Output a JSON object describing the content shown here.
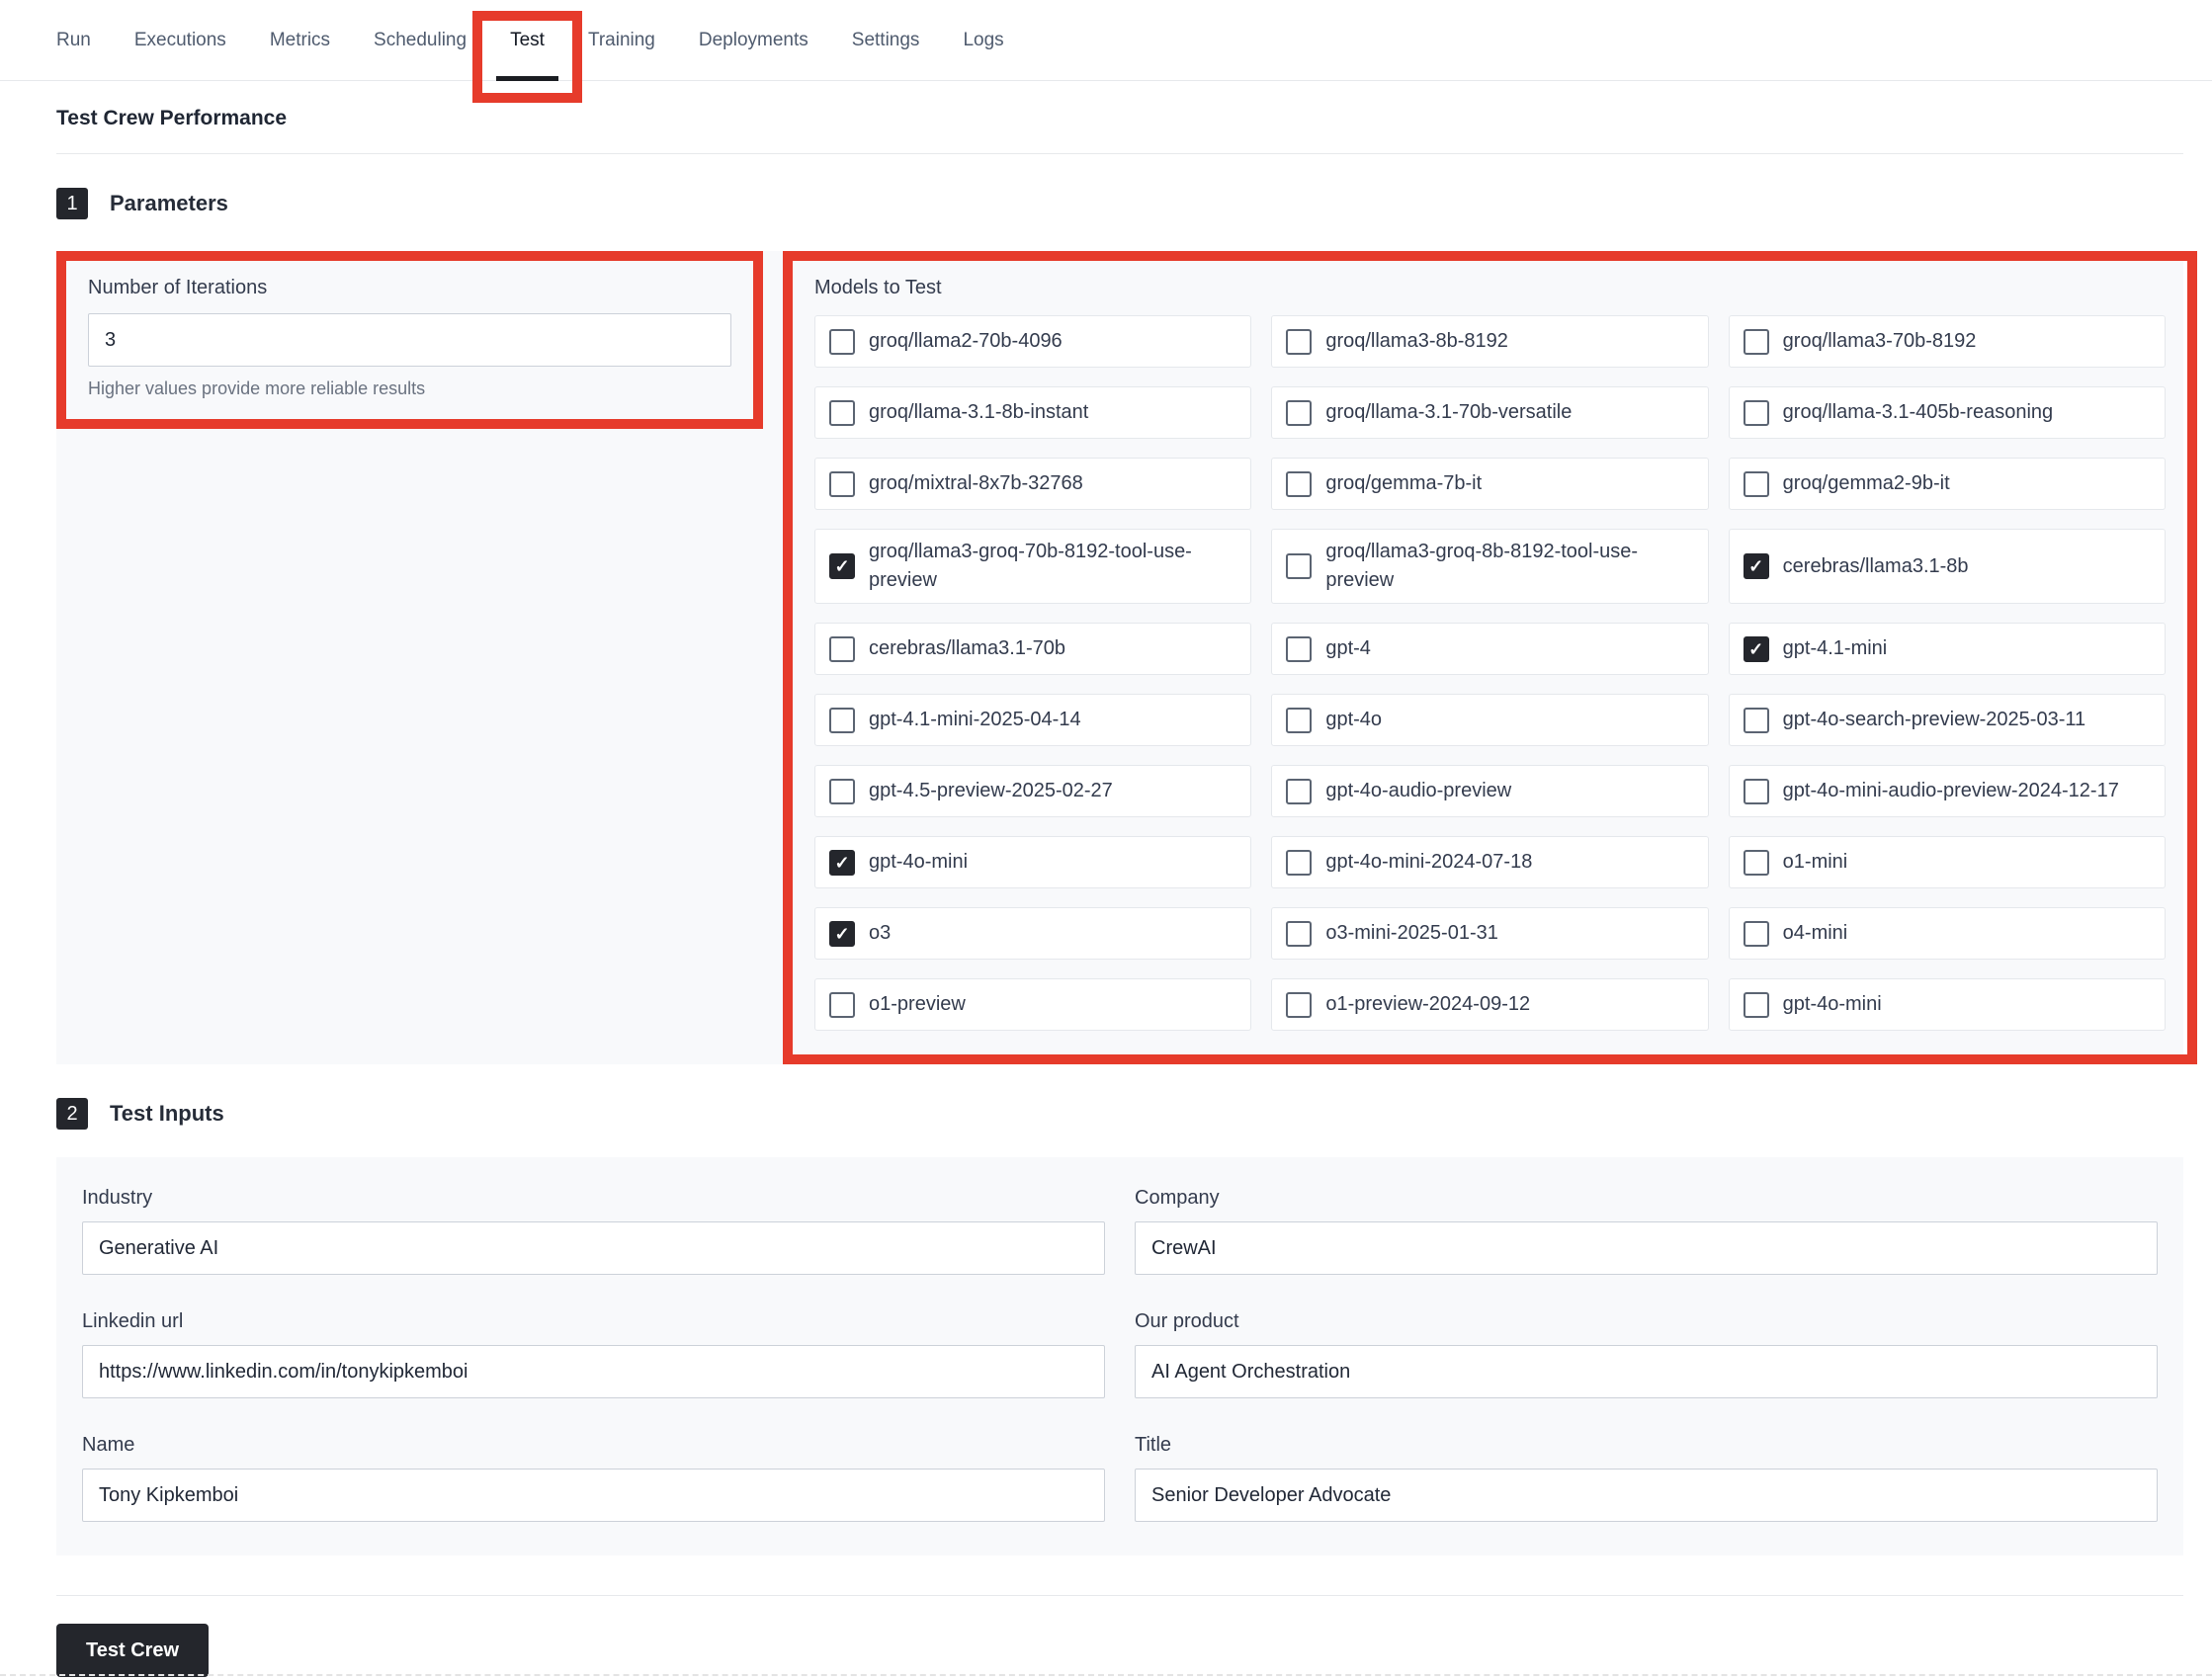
{
  "colors": {
    "accent_red": "#e63b2b",
    "dark": "#24262c",
    "panel_bg": "#f8f9fb"
  },
  "tabs": {
    "items": [
      {
        "label": "Run",
        "active": false
      },
      {
        "label": "Executions",
        "active": false
      },
      {
        "label": "Metrics",
        "active": false
      },
      {
        "label": "Scheduling",
        "active": false
      },
      {
        "label": "Test",
        "active": true
      },
      {
        "label": "Training",
        "active": false
      },
      {
        "label": "Deployments",
        "active": false
      },
      {
        "label": "Settings",
        "active": false
      },
      {
        "label": "Logs",
        "active": false
      }
    ]
  },
  "page": {
    "title": "Test Crew Performance"
  },
  "parameters": {
    "step_number": "1",
    "heading": "Parameters",
    "iterations": {
      "label": "Number of Iterations",
      "value": "3",
      "helper": "Higher values provide more reliable results"
    },
    "models": {
      "label": "Models to Test",
      "items": [
        {
          "label": "groq/llama2-70b-4096",
          "checked": false
        },
        {
          "label": "groq/llama3-8b-8192",
          "checked": false
        },
        {
          "label": "groq/llama3-70b-8192",
          "checked": false
        },
        {
          "label": "groq/llama-3.1-8b-instant",
          "checked": false
        },
        {
          "label": "groq/llama-3.1-70b-versatile",
          "checked": false
        },
        {
          "label": "groq/llama-3.1-405b-reasoning",
          "checked": false
        },
        {
          "label": "groq/mixtral-8x7b-32768",
          "checked": false
        },
        {
          "label": "groq/gemma-7b-it",
          "checked": false
        },
        {
          "label": "groq/gemma2-9b-it",
          "checked": false
        },
        {
          "label": "groq/llama3-groq-70b-8192-tool-use-preview",
          "checked": true
        },
        {
          "label": "groq/llama3-groq-8b-8192-tool-use-preview",
          "checked": false
        },
        {
          "label": "cerebras/llama3.1-8b",
          "checked": true
        },
        {
          "label": "cerebras/llama3.1-70b",
          "checked": false
        },
        {
          "label": "gpt-4",
          "checked": false
        },
        {
          "label": "gpt-4.1-mini",
          "checked": true
        },
        {
          "label": "gpt-4.1-mini-2025-04-14",
          "checked": false
        },
        {
          "label": "gpt-4o",
          "checked": false
        },
        {
          "label": "gpt-4o-search-preview-2025-03-11",
          "checked": false
        },
        {
          "label": "gpt-4.5-preview-2025-02-27",
          "checked": false
        },
        {
          "label": "gpt-4o-audio-preview",
          "checked": false
        },
        {
          "label": "gpt-4o-mini-audio-preview-2024-12-17",
          "checked": false
        },
        {
          "label": "gpt-4o-mini",
          "checked": true
        },
        {
          "label": "gpt-4o-mini-2024-07-18",
          "checked": false
        },
        {
          "label": "o1-mini",
          "checked": false
        },
        {
          "label": "o3",
          "checked": true
        },
        {
          "label": "o3-mini-2025-01-31",
          "checked": false
        },
        {
          "label": "o4-mini",
          "checked": false
        },
        {
          "label": "o1-preview",
          "checked": false
        },
        {
          "label": "o1-preview-2024-09-12",
          "checked": false
        },
        {
          "label": "gpt-4o-mini",
          "checked": false
        }
      ]
    }
  },
  "test_inputs": {
    "step_number": "2",
    "heading": "Test Inputs",
    "fields": [
      {
        "label": "Industry",
        "value": "Generative AI"
      },
      {
        "label": "Company",
        "value": "CrewAI"
      },
      {
        "label": "Linkedin url",
        "value": "https://www.linkedin.com/in/tonykipkemboi"
      },
      {
        "label": "Our product",
        "value": "AI Agent Orchestration"
      },
      {
        "label": "Name",
        "value": "Tony Kipkemboi"
      },
      {
        "label": "Title",
        "value": "Senior Developer Advocate"
      }
    ]
  },
  "footer": {
    "test_crew_label": "Test Crew"
  }
}
